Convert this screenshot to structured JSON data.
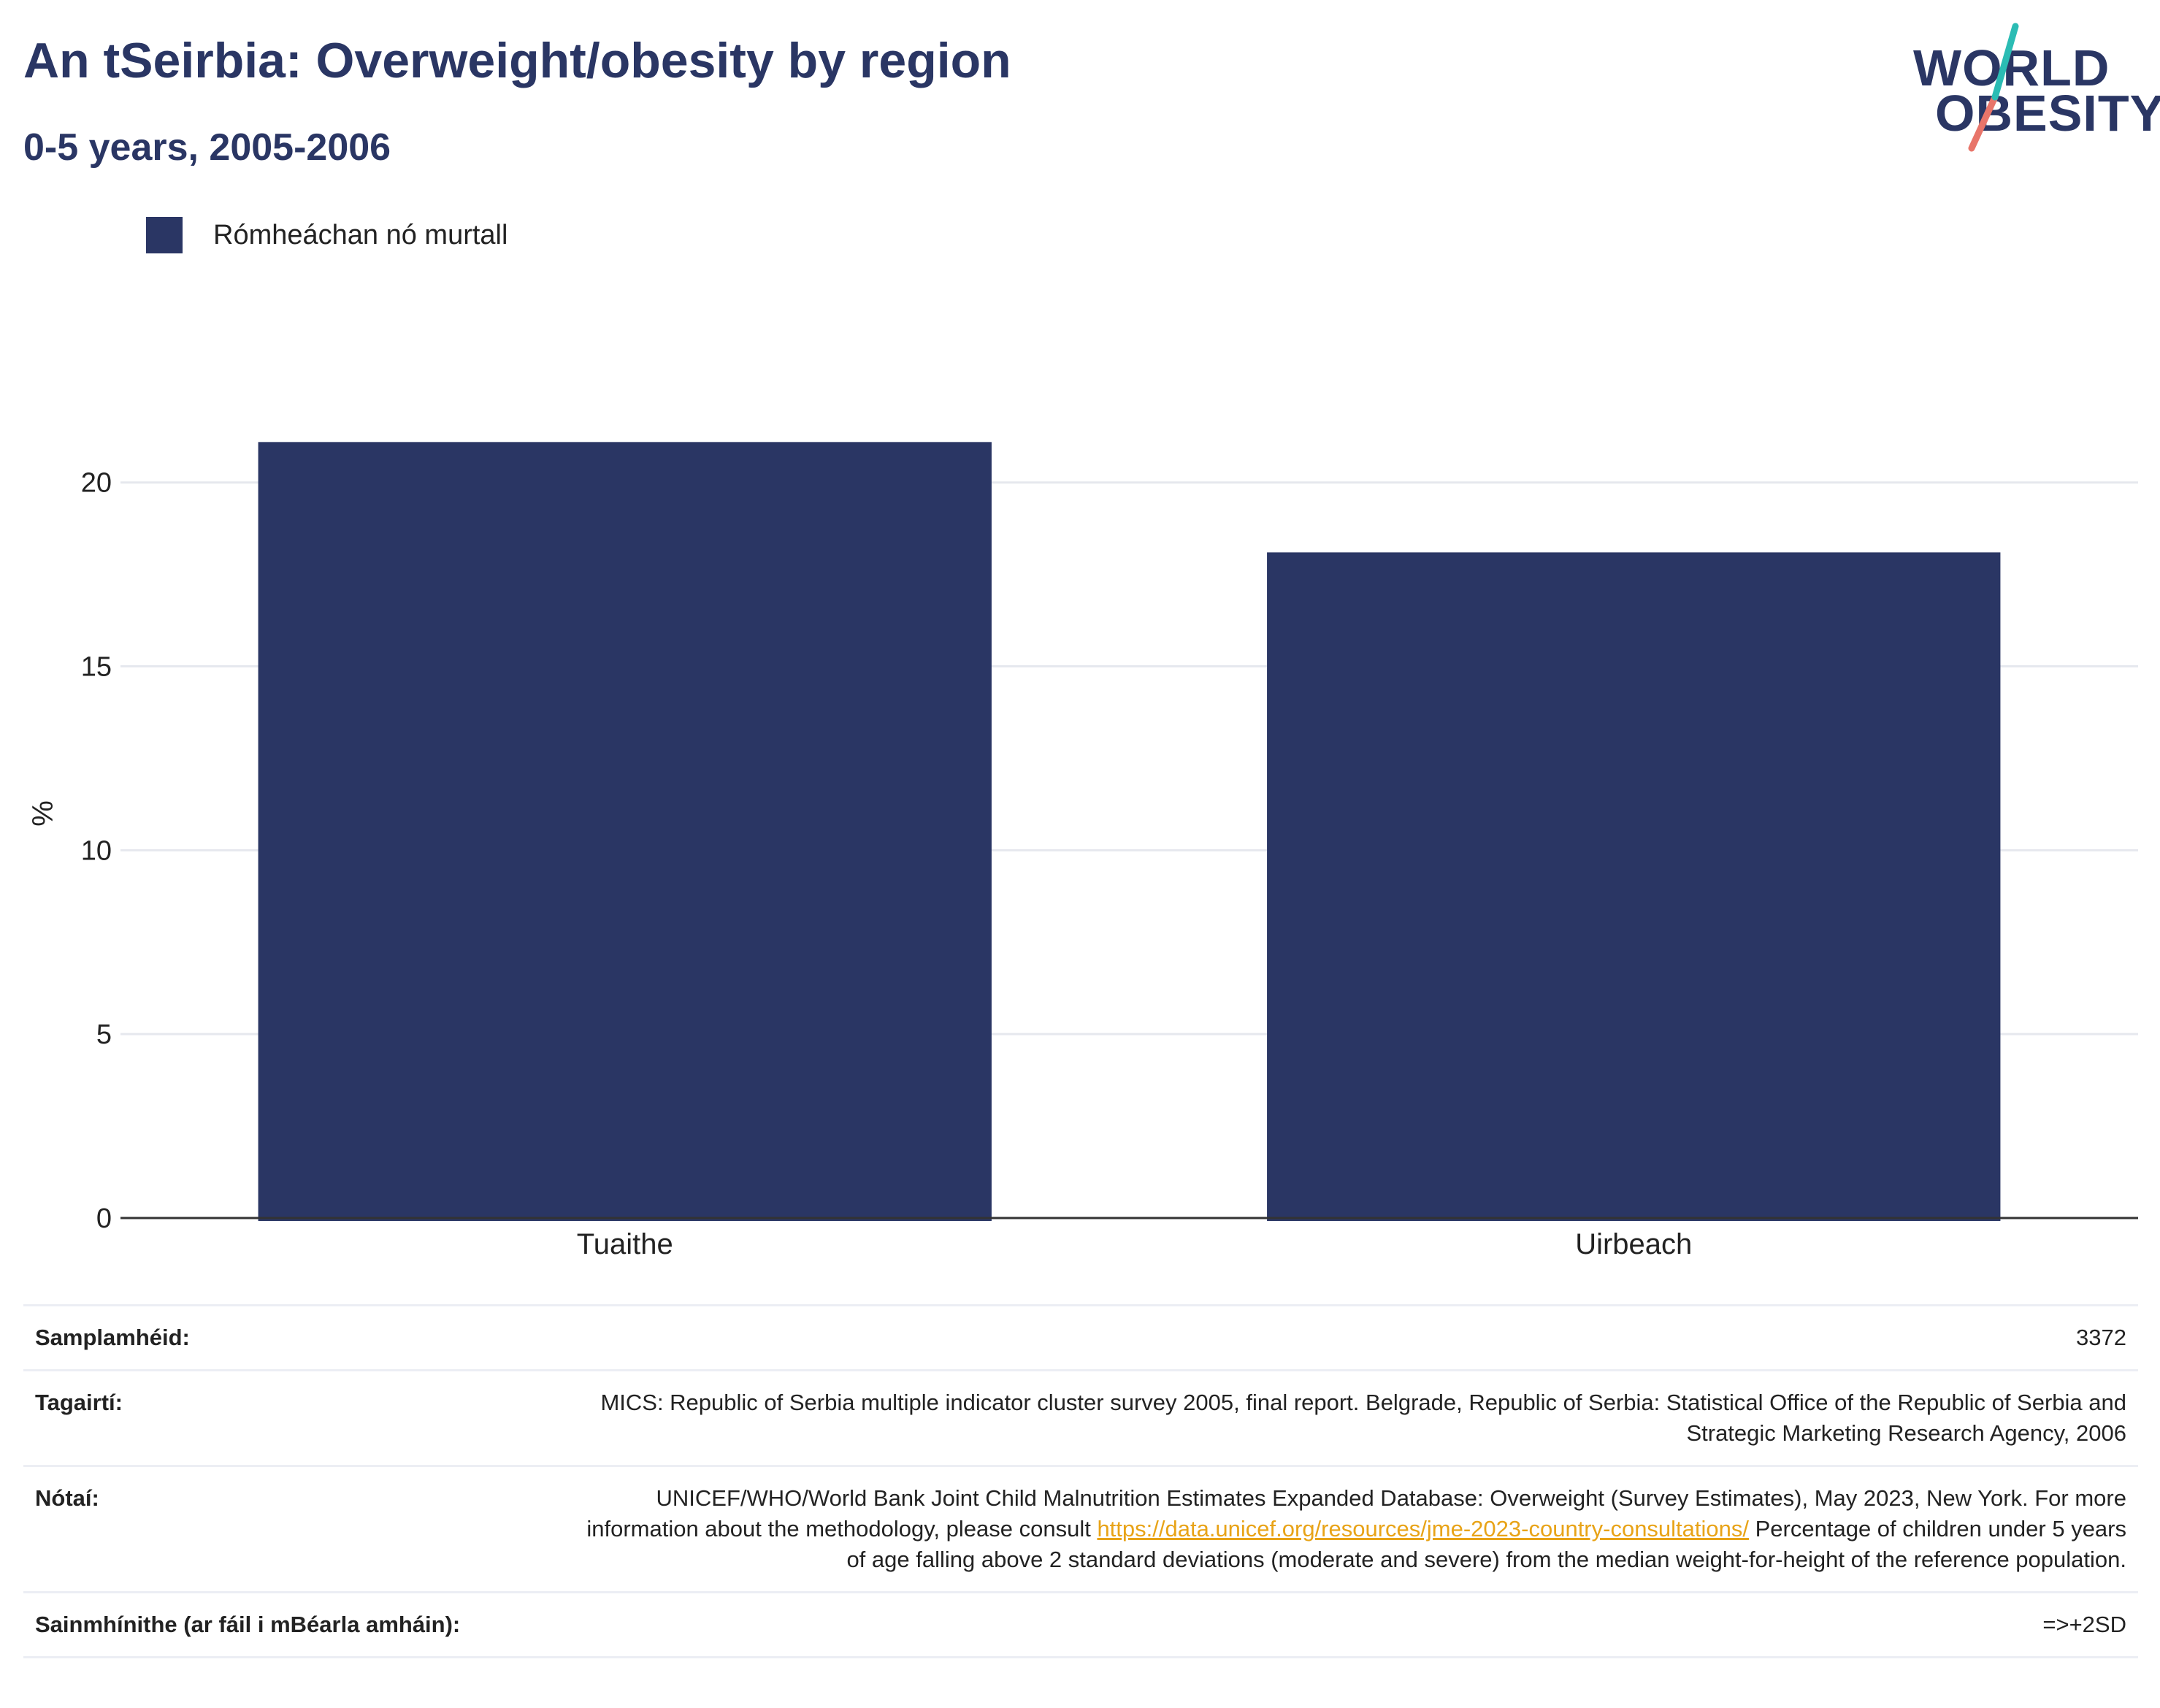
{
  "header": {
    "title": "An tSeirbia: Overweight/obesity by region",
    "subtitle": "0-5 years, 2005-2006"
  },
  "logo": {
    "line1": "WORLD",
    "line2": "OBESITY",
    "colors": {
      "text": "#2a3664",
      "slash_teal": "#2bbcb4",
      "slash_coral": "#e8756a"
    }
  },
  "legend": {
    "label": "Rómheáchan nó murtall",
    "color": "#2a3664"
  },
  "chart_data": {
    "type": "bar",
    "categories": [
      "Tuaithe",
      "Uirbeach"
    ],
    "series": [
      {
        "name": "Rómheáchan nó murtall",
        "values": [
          21.1,
          18.1
        ],
        "color": "#2a3664"
      }
    ],
    "xlabel": "",
    "ylabel": "%",
    "ylim": [
      0,
      22
    ],
    "yticks": [
      0,
      5,
      10,
      15,
      20
    ],
    "grid": true,
    "legend_position": "top-left"
  },
  "info": {
    "sample_size": {
      "label": "Samplamhéid:",
      "value": "3372"
    },
    "references": {
      "label": "Tagairtí:",
      "value": "MICS: Republic of Serbia multiple indicator cluster survey 2005, final report. Belgrade, Republic of Serbia: Statistical Office of the Republic of Serbia and Strategic Marketing Research Agency, 2006"
    },
    "notes": {
      "label": "Nótaí:",
      "text_before": "UNICEF/WHO/World Bank Joint Child Malnutrition Estimates Expanded Database: Overweight (Survey Estimates), May 2023, New York. For more information about the methodology, please consult ",
      "link": "https://data.unicef.org/resources/jme-2023-country-consultations/",
      "text_after": " Percentage of children under 5 years of age falling above 2 standard deviations (moderate and severe) from the median weight-for-height of the reference population."
    },
    "definitions": {
      "label": "Sainmhínithe (ar fáil i mBéarla amháin):",
      "value": "=>+2SD"
    }
  }
}
